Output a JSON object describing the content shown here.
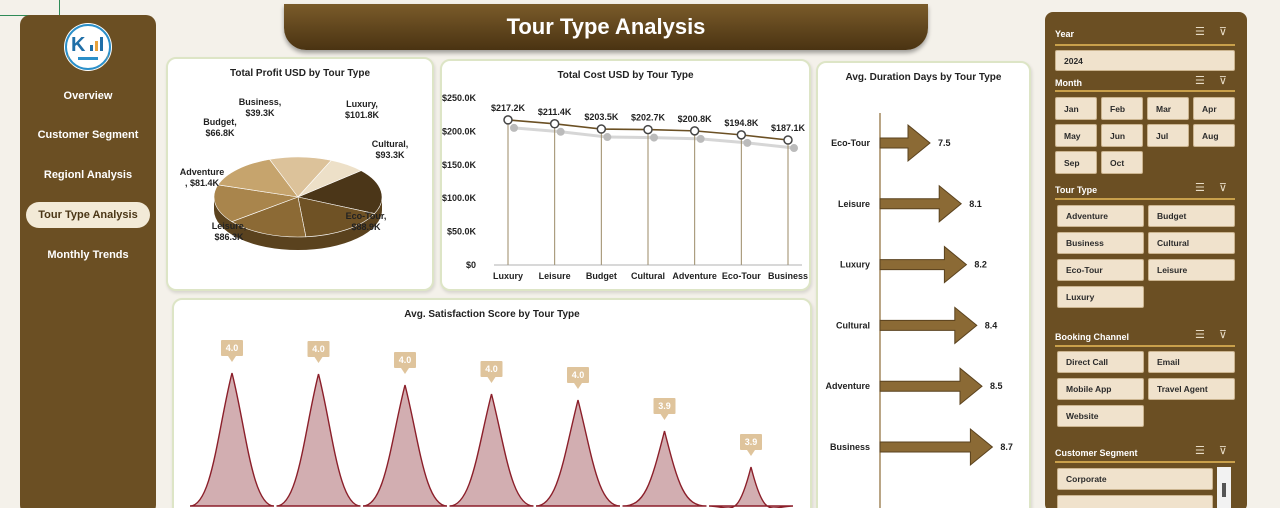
{
  "title": "Tour Type Analysis",
  "nav": {
    "items": [
      {
        "label": "Overview",
        "active": false
      },
      {
        "label": "Customer Segment",
        "active": false
      },
      {
        "label": "Regionl Analysis",
        "active": false
      },
      {
        "label": "Tour Type Analysis",
        "active": true
      },
      {
        "label": "Monthly Trends",
        "active": false
      }
    ]
  },
  "colors": {
    "panel_brown": "#6b4f23",
    "accent_gold": "#c9a04b",
    "arrow_brown": "#8b6a35",
    "satisfaction_fill": "#d2aeb1",
    "satisfaction_stroke": "#8b1f2a"
  },
  "chart_data": [
    {
      "type": "pie",
      "title": "Total Profit USD by Tour Type",
      "categories": [
        "Luxury",
        "Cultural",
        "Eco-Tour",
        "Leisure",
        "Adventure",
        "Budget",
        "Business"
      ],
      "values": [
        101.8,
        93.3,
        88.9,
        86.3,
        81.4,
        66.8,
        39.3
      ],
      "data_labels": [
        "Luxury,",
        "$101.8K",
        "Cultural,",
        "$93.3K",
        "Eco-Tour,",
        "$88.9K",
        "Leisure,",
        "$86.3K",
        "Adventure",
        ", $81.4K",
        "Budget,",
        "$66.8K",
        "Business,",
        "$39.3K"
      ]
    },
    {
      "type": "line",
      "title": "Total Cost USD by Tour Type",
      "categories": [
        "Luxury",
        "Leisure",
        "Budget",
        "Cultural",
        "Adventure",
        "Eco-Tour",
        "Business"
      ],
      "values": [
        217.2,
        211.4,
        203.5,
        202.7,
        200.8,
        194.8,
        187.1
      ],
      "data_labels": [
        "$217.2K",
        "$211.4K",
        "$203.5K",
        "$202.7K",
        "$200.8K",
        "$194.8K",
        "$187.1K"
      ],
      "y_ticks": [
        "$0",
        "$50.0K",
        "$100.0K",
        "$150.0K",
        "$200.0K",
        "$250.0K"
      ],
      "ylim": [
        0,
        250
      ]
    },
    {
      "type": "bar",
      "title": "Avg. Duration Days by Tour Type",
      "orientation": "horizontal",
      "categories": [
        "Eco-Tour",
        "Leisure",
        "Luxury",
        "Cultural",
        "Adventure",
        "Business"
      ],
      "values": [
        7.5,
        8.1,
        8.2,
        8.4,
        8.5,
        8.7
      ],
      "data_labels": [
        "7.5",
        "8.1",
        "8.2",
        "8.4",
        "8.5",
        "8.7"
      ]
    },
    {
      "type": "area",
      "title": "Avg. Satisfaction Score by Tour Type",
      "values": [
        4.0,
        4.0,
        4.0,
        4.0,
        4.0,
        3.9,
        3.9
      ],
      "data_labels": [
        "4.0",
        "4.0",
        "4.0",
        "4.0",
        "4.0",
        "3.9",
        "3.9"
      ]
    }
  ],
  "slicers": {
    "year": {
      "label": "Year",
      "value": "2024"
    },
    "month": {
      "label": "Month",
      "options": [
        "Jan",
        "Feb",
        "Mar",
        "Apr",
        "May",
        "Jun",
        "Jul",
        "Aug",
        "Sep",
        "Oct"
      ]
    },
    "tour_type": {
      "label": "Tour Type",
      "options": [
        "Adventure",
        "Budget",
        "Business",
        "Cultural",
        "Eco-Tour",
        "Leisure",
        "Luxury"
      ]
    },
    "booking_channel": {
      "label": "Booking Channel",
      "options": [
        "Direct Call",
        "Email",
        "Mobile App",
        "Travel Agent",
        "Website"
      ]
    },
    "customer_segment": {
      "label": "Customer Segment",
      "options": [
        "Corporate",
        ""
      ]
    }
  }
}
